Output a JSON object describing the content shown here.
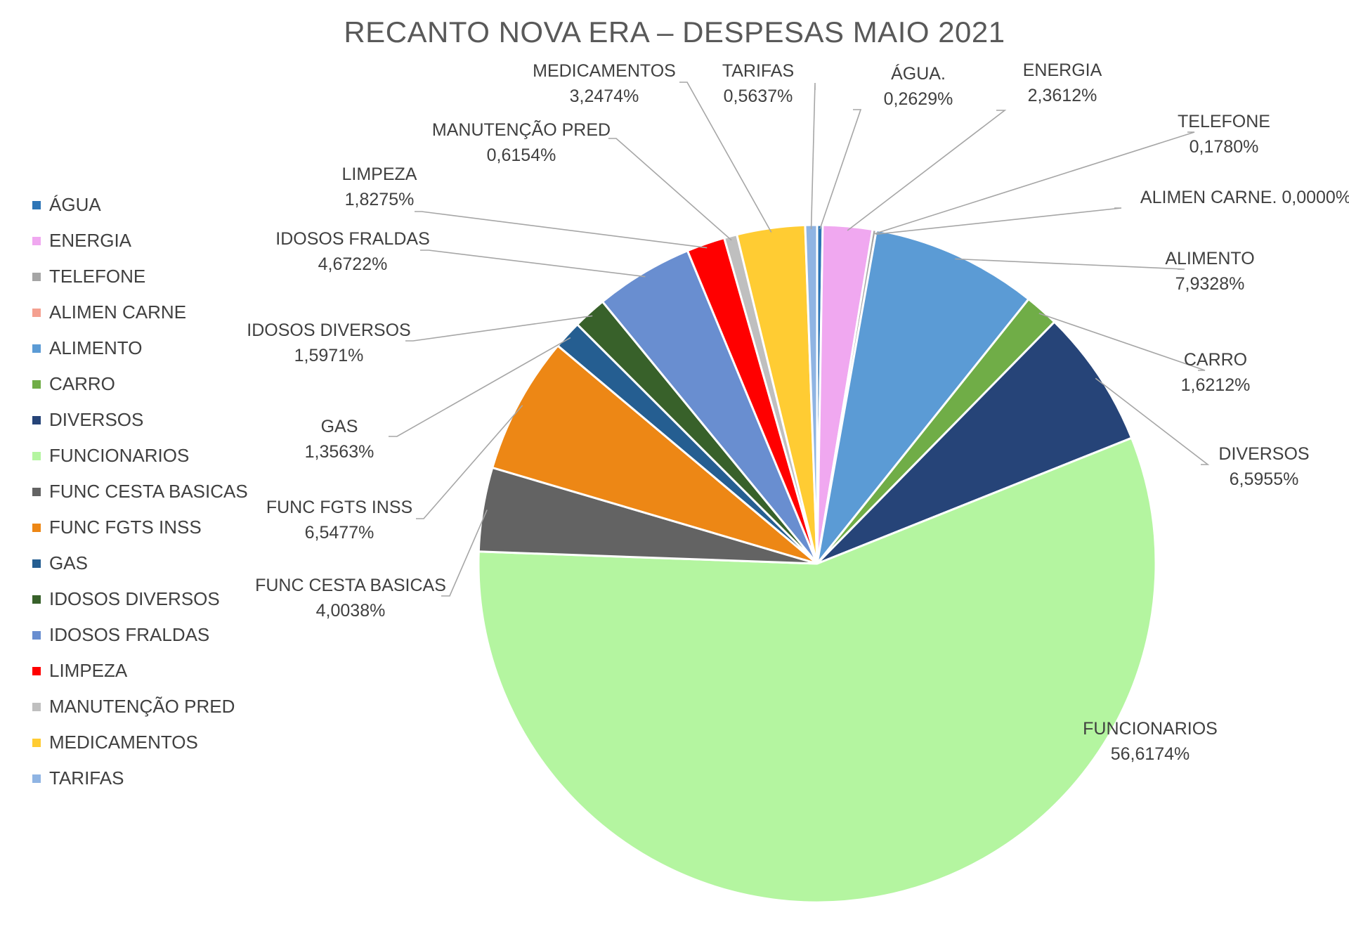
{
  "chart_data": {
    "type": "pie",
    "title": "RECANTO NOVA ERA – DESPESAS MAIO 2021",
    "legend_position": "left",
    "slices": [
      {
        "name": "ÁGUA",
        "label_name": "ÁGUA.",
        "value": 0.2629,
        "value_label": "0,2629%",
        "color": "#2E75B6"
      },
      {
        "name": "ENERGIA",
        "label_name": "ENERGIA",
        "value": 2.3612,
        "value_label": "2,3612%",
        "color": "#F0A8F0"
      },
      {
        "name": "TELEFONE",
        "label_name": "TELEFONE",
        "value": 0.178,
        "value_label": "0,1780%",
        "color": "#A5A5A5"
      },
      {
        "name": "ALIMEN CARNE",
        "label_name": "ALIMEN CARNE.",
        "value": 0.0,
        "value_label": "0,0000%",
        "color": "#F4A090"
      },
      {
        "name": "ALIMENTO",
        "label_name": "ALIMENTO",
        "value": 7.9328,
        "value_label": "7,9328%",
        "color": "#5B9BD5"
      },
      {
        "name": "CARRO",
        "label_name": "CARRO",
        "value": 1.6212,
        "value_label": "1,6212%",
        "color": "#70AD47"
      },
      {
        "name": "DIVERSOS",
        "label_name": "DIVERSOS",
        "value": 6.5955,
        "value_label": "6,5955%",
        "color": "#264478"
      },
      {
        "name": "FUNCIONARIOS",
        "label_name": "FUNCIONARIOS",
        "value": 56.6174,
        "value_label": "56,6174%",
        "color": "#B4F5A0"
      },
      {
        "name": "FUNC CESTA BASICAS",
        "label_name": "FUNC CESTA BASICAS",
        "value": 4.0038,
        "value_label": "4,0038%",
        "color": "#636363"
      },
      {
        "name": "FUNC FGTS INSS",
        "label_name": "FUNC FGTS INSS",
        "value": 6.5477,
        "value_label": "6,5477%",
        "color": "#ED8715"
      },
      {
        "name": "GAS",
        "label_name": "GAS",
        "value": 1.3563,
        "value_label": "1,3563%",
        "color": "#255E91"
      },
      {
        "name": "IDOSOS DIVERSOS",
        "label_name": "IDOSOS DIVERSOS",
        "value": 1.5971,
        "value_label": "1,5971%",
        "color": "#38612A"
      },
      {
        "name": "IDOSOS FRALDAS",
        "label_name": "IDOSOS FRALDAS",
        "value": 4.6722,
        "value_label": "4,6722%",
        "color": "#698ED0"
      },
      {
        "name": "LIMPEZA",
        "label_name": "LIMPEZA",
        "value": 1.8275,
        "value_label": "1,8275%",
        "color": "#FF0000"
      },
      {
        "name": "MANUTENÇÃO PRED",
        "label_name": "MANUTENÇÃO PRED",
        "value": 0.6154,
        "value_label": "0,6154%",
        "color": "#BFBFBF"
      },
      {
        "name": "MEDICAMENTOS",
        "label_name": "MEDICAMENTOS",
        "value": 3.2474,
        "value_label": "3,2474%",
        "color": "#FFCC33"
      },
      {
        "name": "TARIFAS",
        "label_name": "TARIFAS",
        "value": 0.5637,
        "value_label": "0,5637%",
        "color": "#8FB4E3"
      }
    ]
  }
}
